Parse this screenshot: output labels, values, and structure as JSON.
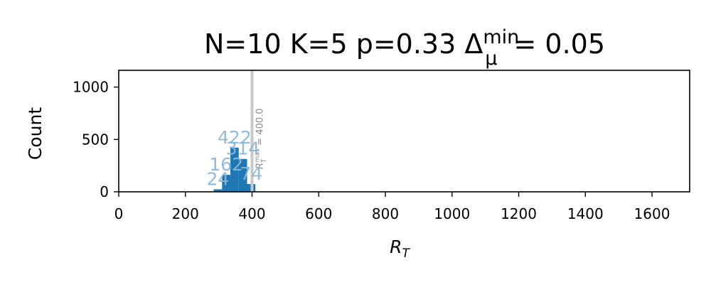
{
  "chart_data": {
    "type": "bar",
    "title": {
      "prefix": "N=10 K=5 p=0.33 Δ",
      "sup": "min",
      "sub": "μ",
      "suffix": "= 0.05"
    },
    "xlabel": {
      "main": "R",
      "sub": "T"
    },
    "ylabel": "Count",
    "xlim": [
      0,
      1713
    ],
    "ylim": [
      0,
      1160
    ],
    "x_ticks": [
      0,
      200,
      400,
      600,
      800,
      1000,
      1200,
      1400,
      1600
    ],
    "y_ticks": [
      0,
      500,
      1000
    ],
    "bar_color": "#1f77b4",
    "label_color": "#8ab6d6",
    "bins": [
      {
        "x0": 285,
        "x1": 310,
        "value": 24,
        "label": "24"
      },
      {
        "x0": 310,
        "x1": 335,
        "value": 162,
        "label": "162"
      },
      {
        "x0": 335,
        "x1": 360,
        "value": 422,
        "label": "422"
      },
      {
        "x0": 360,
        "x1": 385,
        "value": 314,
        "label": "314"
      },
      {
        "x0": 385,
        "x1": 410,
        "value": 74,
        "label": "74"
      }
    ],
    "reference_line": {
      "x": 400,
      "label": "R_T^max = 400.0",
      "color": "#c8c8c8",
      "text_color": "#888888"
    },
    "grid": false,
    "legend": "none"
  }
}
